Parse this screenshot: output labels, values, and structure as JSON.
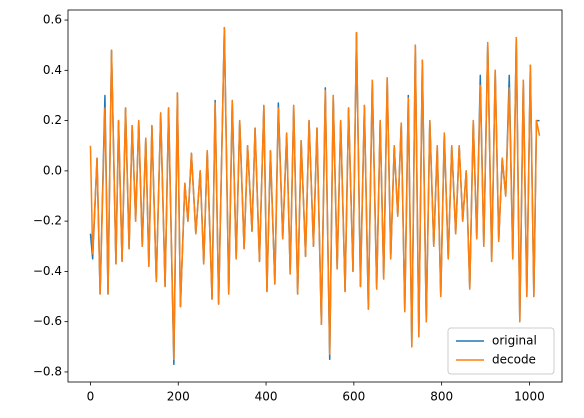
{
  "chart_data": {
    "type": "line",
    "x": [
      0,
      5,
      15,
      22,
      33,
      40,
      48,
      58,
      64,
      72,
      80,
      88,
      95,
      103,
      110,
      118,
      126,
      133,
      140,
      150,
      160,
      170,
      178,
      190,
      198,
      205,
      215,
      222,
      230,
      240,
      250,
      258,
      266,
      277,
      284,
      292,
      305,
      315,
      323,
      332,
      340,
      350,
      358,
      368,
      375,
      385,
      395,
      402,
      410,
      420,
      428,
      438,
      447,
      455,
      463,
      472,
      480,
      490,
      498,
      508,
      516,
      526,
      535,
      545,
      553,
      562,
      570,
      580,
      588,
      598,
      606,
      615,
      624,
      633,
      642,
      652,
      660,
      668,
      676,
      684,
      692,
      700,
      708,
      716,
      724,
      732,
      740,
      748,
      756,
      765,
      773,
      782,
      790,
      798,
      806,
      815,
      823,
      832,
      840,
      848,
      856,
      864,
      872,
      880,
      888,
      896,
      905,
      914,
      922,
      930,
      938,
      946,
      954,
      962,
      970,
      978,
      986,
      994,
      1002,
      1010,
      1016,
      1023
    ],
    "series": [
      {
        "name": "original",
        "color": "#1f77b4",
        "values": [
          -0.25,
          -0.35,
          0.05,
          -0.49,
          0.3,
          -0.49,
          0.48,
          -0.37,
          0.2,
          -0.36,
          0.25,
          -0.31,
          0.18,
          -0.2,
          0.2,
          -0.3,
          0.13,
          -0.38,
          0.18,
          -0.44,
          0.23,
          -0.46,
          0.25,
          -0.77,
          0.31,
          -0.54,
          -0.05,
          -0.2,
          0.07,
          -0.25,
          0.0,
          -0.37,
          0.08,
          -0.51,
          0.28,
          -0.53,
          0.57,
          -0.49,
          0.28,
          -0.35,
          0.2,
          -0.31,
          0.1,
          -0.24,
          0.17,
          -0.36,
          0.26,
          -0.48,
          0.08,
          -0.45,
          0.27,
          -0.27,
          0.15,
          -0.41,
          0.26,
          -0.49,
          0.12,
          -0.34,
          0.2,
          -0.3,
          0.17,
          -0.61,
          0.33,
          -0.75,
          0.3,
          -0.39,
          0.2,
          -0.48,
          0.25,
          -0.4,
          0.55,
          -0.46,
          0.26,
          -0.55,
          0.36,
          -0.47,
          0.2,
          -0.43,
          0.37,
          -0.35,
          0.1,
          -0.18,
          0.19,
          -0.56,
          0.3,
          -0.7,
          0.5,
          -0.66,
          0.44,
          -0.6,
          0.2,
          -0.3,
          0.1,
          -0.5,
          0.15,
          -0.35,
          0.1,
          -0.25,
          0.1,
          -0.2,
          0.0,
          -0.47,
          0.2,
          -0.27,
          0.38,
          -0.3,
          0.51,
          -0.36,
          0.4,
          -0.28,
          0.05,
          -0.1,
          0.38,
          -0.35,
          0.53,
          -0.6,
          0.36,
          -0.5,
          0.42,
          -0.5,
          0.2,
          0.2
        ]
      },
      {
        "name": "decode",
        "color": "#ff7f0e",
        "values": [
          0.1,
          -0.33,
          0.05,
          -0.49,
          0.25,
          -0.49,
          0.48,
          -0.37,
          0.2,
          -0.36,
          0.25,
          -0.31,
          0.18,
          -0.2,
          0.2,
          -0.3,
          0.13,
          -0.38,
          0.18,
          -0.44,
          0.23,
          -0.46,
          0.25,
          -0.75,
          0.31,
          -0.54,
          -0.05,
          -0.2,
          0.07,
          -0.25,
          0.0,
          -0.37,
          0.08,
          -0.51,
          0.27,
          -0.53,
          0.57,
          -0.49,
          0.28,
          -0.35,
          0.2,
          -0.31,
          0.1,
          -0.24,
          0.17,
          -0.36,
          0.26,
          -0.48,
          0.08,
          -0.45,
          0.25,
          -0.27,
          0.15,
          -0.41,
          0.26,
          -0.49,
          0.12,
          -0.34,
          0.2,
          -0.3,
          0.17,
          -0.61,
          0.32,
          -0.73,
          0.3,
          -0.39,
          0.2,
          -0.48,
          0.25,
          -0.4,
          0.55,
          -0.46,
          0.26,
          -0.55,
          0.36,
          -0.47,
          0.2,
          -0.43,
          0.37,
          -0.35,
          0.1,
          -0.18,
          0.19,
          -0.56,
          0.29,
          -0.7,
          0.5,
          -0.66,
          0.44,
          -0.6,
          0.2,
          -0.3,
          0.1,
          -0.5,
          0.15,
          -0.35,
          0.1,
          -0.25,
          0.1,
          -0.2,
          0.0,
          -0.47,
          0.2,
          -0.27,
          0.34,
          -0.3,
          0.51,
          -0.36,
          0.4,
          -0.28,
          0.05,
          -0.1,
          0.33,
          -0.35,
          0.53,
          -0.6,
          0.36,
          -0.5,
          0.42,
          -0.5,
          0.2,
          0.14
        ]
      }
    ],
    "xlim": [
      -51.15,
      1074.15
    ],
    "xticks": [
      0,
      200,
      400,
      600,
      800,
      1000
    ],
    "ylim": [
      -0.84,
      0.64
    ],
    "yticks": [
      {
        "value": -0.8,
        "label": "−0.8"
      },
      {
        "value": -0.6,
        "label": "−0.6"
      },
      {
        "value": -0.4,
        "label": "−0.4"
      },
      {
        "value": -0.2,
        "label": "−0.2"
      },
      {
        "value": 0.0,
        "label": "0.0"
      },
      0.2,
      0.4,
      0.6
    ],
    "legend": "lower right"
  }
}
